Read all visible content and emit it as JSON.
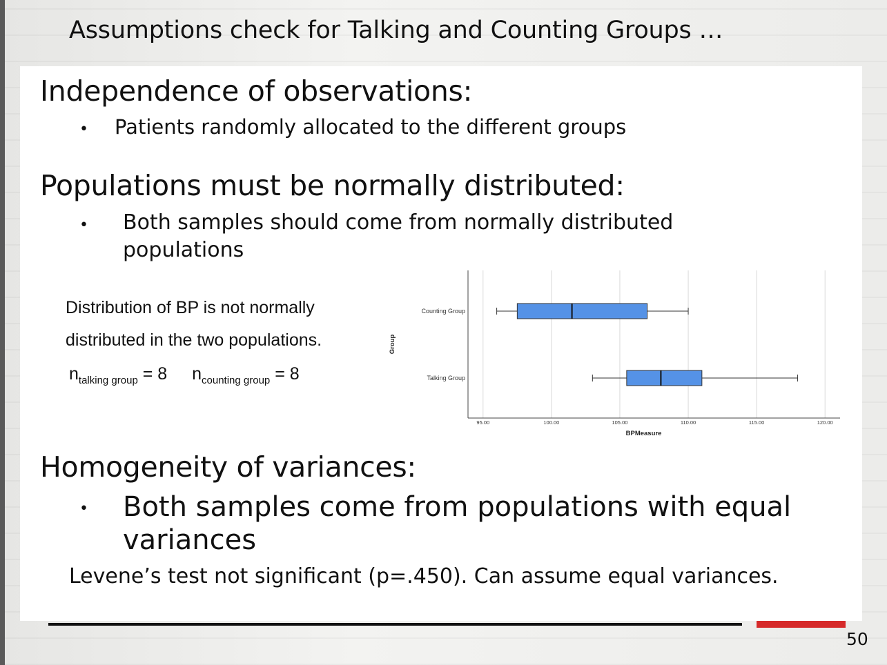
{
  "slide": {
    "title": "Assumptions check for Talking and Counting Groups …",
    "page_number": "50",
    "accent_color": "#d62a2a"
  },
  "sections": {
    "independence": {
      "heading": "Independence of observations:",
      "bullet": "Patients randomly allocated to the different groups"
    },
    "normality": {
      "heading": "Populations must be normally distributed:",
      "bullet_line1": "Both samples should come from normally distributed",
      "bullet_line2": "populations",
      "note_line1": "Distribution of BP is not normally",
      "note_line2": "distributed in the two populations.",
      "n_talking_label": "talking group",
      "n_talking_value": "= 8",
      "n_counting_label": "counting group",
      "n_counting_value": "= 8",
      "n_symbol": "n"
    },
    "homogeneity": {
      "heading": "Homogeneity of variances:",
      "bullet_line1": "Both samples come from populations with equal",
      "bullet_line2": "variances",
      "levene": "Levene’s test not significant (p=.450). Can assume equal variances."
    }
  },
  "chart_data": {
    "type": "boxplot",
    "orientation": "horizontal",
    "xlabel": "BPMeasure",
    "ylabel": "Group",
    "xlim": [
      93.9,
      121.1
    ],
    "xticks": [
      "95.00",
      "100.00",
      "105.00",
      "110.00",
      "115.00",
      "120.00"
    ],
    "box_color": "#5592e6",
    "grid": "vertical",
    "groups": [
      {
        "name": "Counting Group",
        "min": 96.0,
        "q1": 97.5,
        "median": 101.5,
        "q3": 107.0,
        "max": 110.0
      },
      {
        "name": "Talking Group",
        "min": 103.0,
        "q1": 105.5,
        "median": 108.0,
        "q3": 111.0,
        "max": 118.0
      }
    ]
  }
}
